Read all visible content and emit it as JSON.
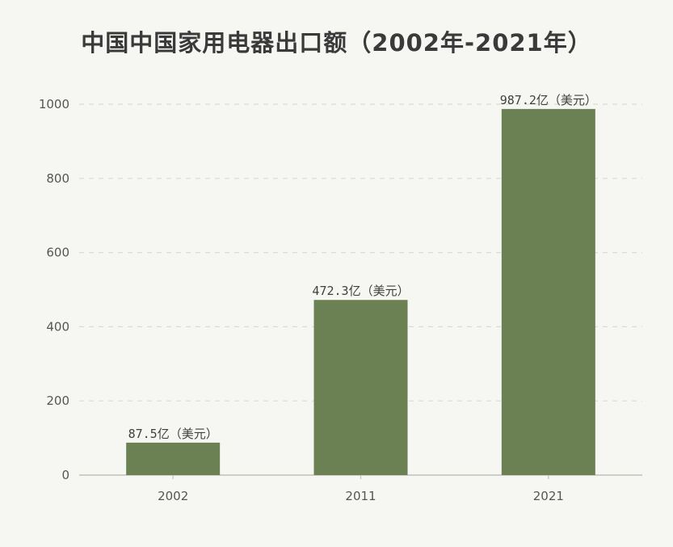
{
  "chart_data": {
    "type": "bar",
    "title": "中国中国家用电器出口额（2002年-2021年）",
    "xlabel": "",
    "ylabel": "",
    "categories": [
      "2002",
      "2011",
      "2021"
    ],
    "values": [
      87.5,
      472.3,
      987.2
    ],
    "value_labels": [
      "87.5亿（美元）",
      "472.3亿（美元）",
      "987.2亿（美元）"
    ],
    "ylim": [
      0,
      1000
    ],
    "yticks": [
      0,
      200,
      400,
      600,
      800,
      1000
    ],
    "grid": true,
    "grid_style": "dashed",
    "legend": "none",
    "colors": {
      "bar": "#6b8154",
      "grid": "#d9dcd4",
      "axis": "#bfc2b8",
      "background": "#f6f7f3"
    }
  }
}
